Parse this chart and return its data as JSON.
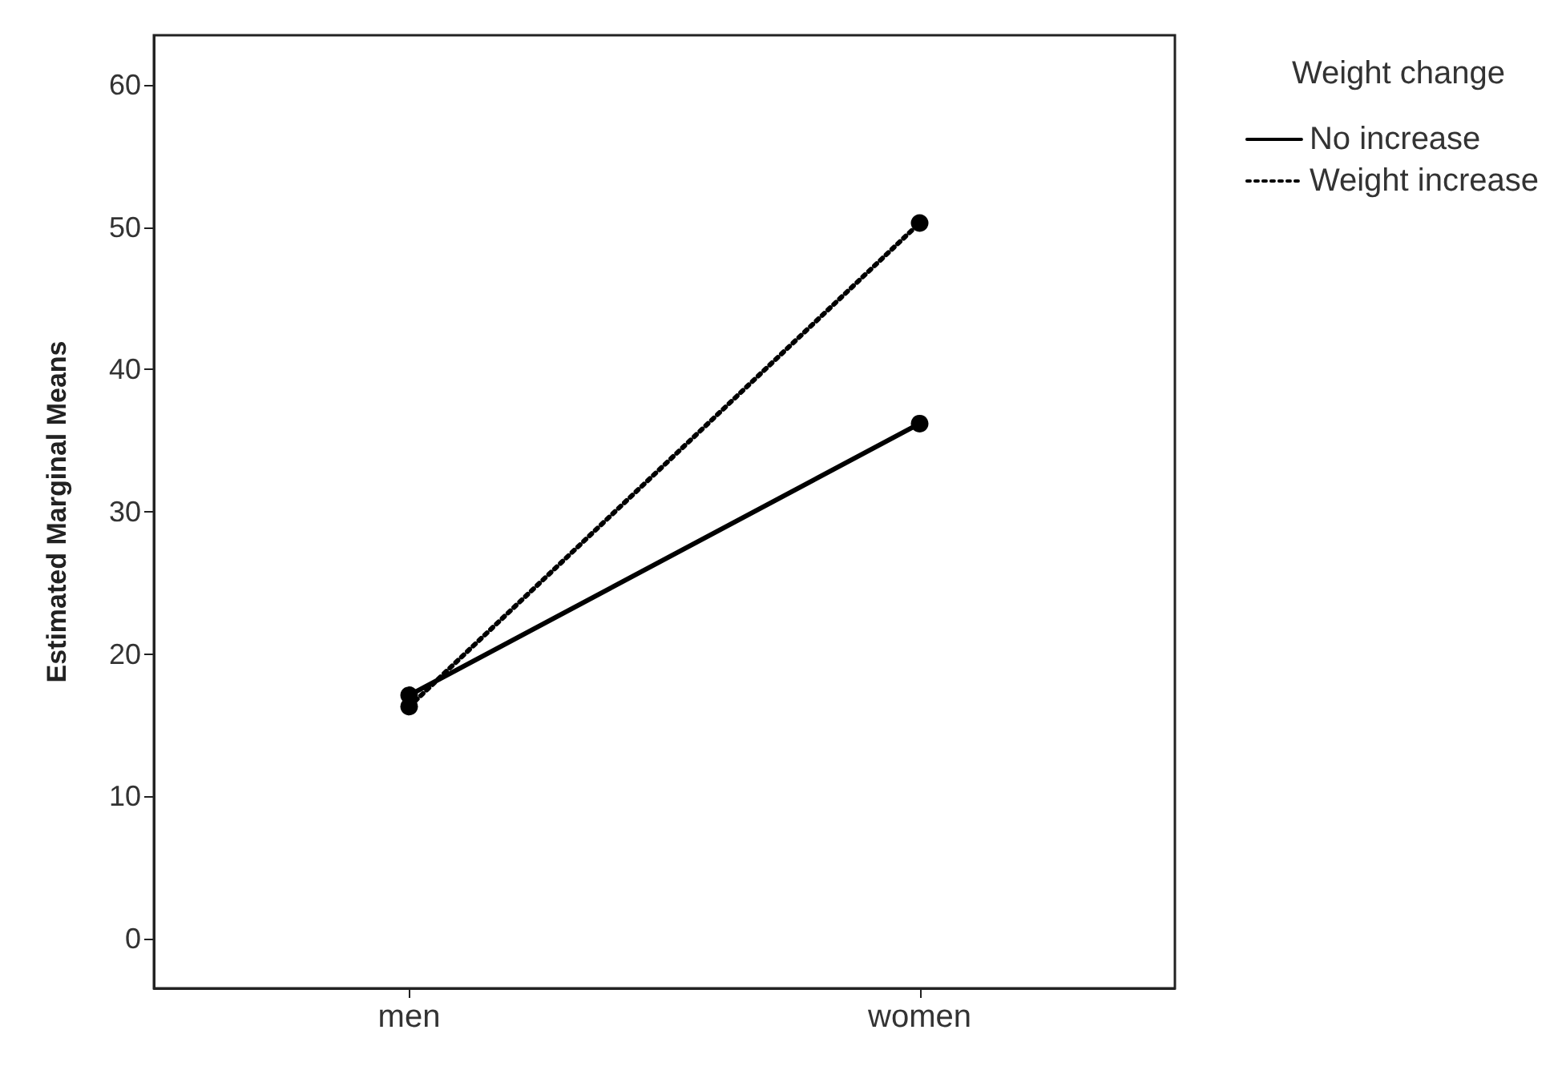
{
  "chart_data": {
    "type": "line",
    "ylabel": "Estimated Marginal Means",
    "legend_title": "Weight change",
    "categories": [
      "men",
      "women"
    ],
    "series": [
      {
        "name": "No increase",
        "color": "#000000",
        "line_style": "solid",
        "values": [
          17.1,
          36.2
        ]
      },
      {
        "name": "Weight increase",
        "color": "#000000",
        "line_style": "dotted",
        "values": [
          16.3,
          50.3
        ]
      }
    ],
    "ylim": [
      -3.5,
      63.5
    ],
    "yticks": [
      0,
      10,
      20,
      30,
      40,
      50,
      60
    ],
    "grid": false,
    "legend": "top right",
    "marker": "circle"
  }
}
